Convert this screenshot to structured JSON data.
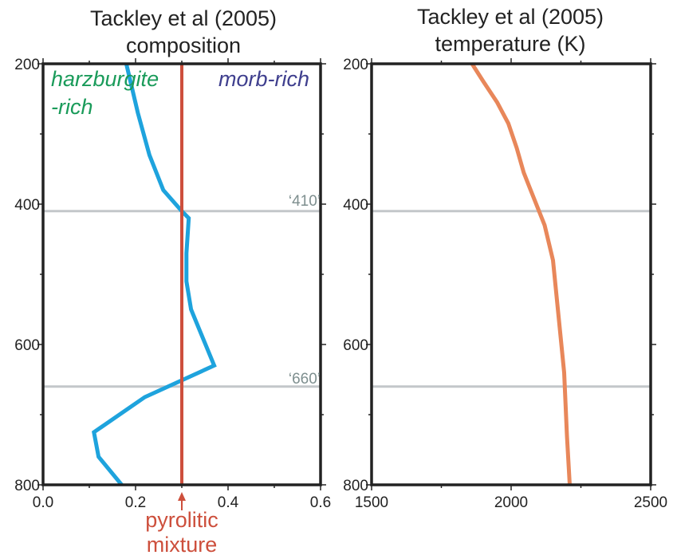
{
  "colors": {
    "frame": "#222222",
    "reference_line": "#c3c7ca",
    "composition_curve": "#1ea3dd",
    "pyrolite_line": "#cd4f3c",
    "temperature_curve": "#e8875a",
    "harzburgite_text": "#1a9b5a",
    "morb_text": "#3f3f8e",
    "depth_label_text": "#7e8f8f"
  },
  "chart_data": [
    {
      "type": "line",
      "title": [
        "Tackley et al (2005)",
        "composition"
      ],
      "xlabel": "",
      "ylabel": "",
      "xlim": [
        0,
        0.6
      ],
      "ylim": [
        200,
        800
      ],
      "y_inverted": true,
      "x_ticks": [
        0.0,
        0.2,
        0.4,
        0.6
      ],
      "x_tick_labels": [
        "0.0",
        "0.2",
        "0.4",
        "0.6"
      ],
      "y_ticks": [
        200,
        400,
        600,
        800
      ],
      "y_tick_labels": [
        "200",
        "400",
        "600",
        "800"
      ],
      "grid": false,
      "series": [
        {
          "role": "composition",
          "x": [
            0.18,
            0.205,
            0.23,
            0.26,
            0.3,
            0.315,
            0.31,
            0.31,
            0.32,
            0.37,
            0.22,
            0.11,
            0.12,
            0.17
          ],
          "y": [
            200,
            270,
            330,
            380,
            410,
            420,
            470,
            510,
            550,
            630,
            675,
            725,
            760,
            800
          ]
        },
        {
          "role": "pyrolitic-mixture",
          "x": [
            0.3,
            0.3
          ],
          "y": [
            200,
            800
          ]
        }
      ],
      "reference_lines": [
        {
          "depth": 410,
          "label": "‘410’"
        },
        {
          "depth": 660,
          "label": "‘660’"
        }
      ],
      "annotations": {
        "harzburgite_line1": "harzburgite",
        "harzburgite_line2": "-rich",
        "morb": "morb-rich",
        "pyrolitic_line1": "pyrolitic",
        "pyrolitic_line2": "mixture"
      }
    },
    {
      "type": "line",
      "title": [
        "Tackley et al (2005)",
        "temperature (K)"
      ],
      "xlabel": "",
      "ylabel": "",
      "xlim": [
        1500,
        2500
      ],
      "ylim": [
        200,
        800
      ],
      "y_inverted": true,
      "x_ticks": [
        1500,
        2000,
        2500
      ],
      "x_tick_labels": [
        "1500",
        "2000",
        "2500"
      ],
      "y_ticks": [
        200,
        400,
        600,
        800
      ],
      "y_tick_labels": [
        "200",
        "400",
        "600",
        "800"
      ],
      "grid": false,
      "series": [
        {
          "role": "temperature",
          "x": [
            1860,
            1900,
            1950,
            1990,
            2020,
            2045,
            2070,
            2100,
            2120,
            2150,
            2170,
            2190,
            2200,
            2210
          ],
          "y": [
            200,
            225,
            255,
            285,
            320,
            355,
            380,
            410,
            430,
            480,
            560,
            640,
            730,
            800
          ]
        }
      ],
      "reference_lines": [
        {
          "depth": 410
        },
        {
          "depth": 660
        }
      ]
    }
  ]
}
